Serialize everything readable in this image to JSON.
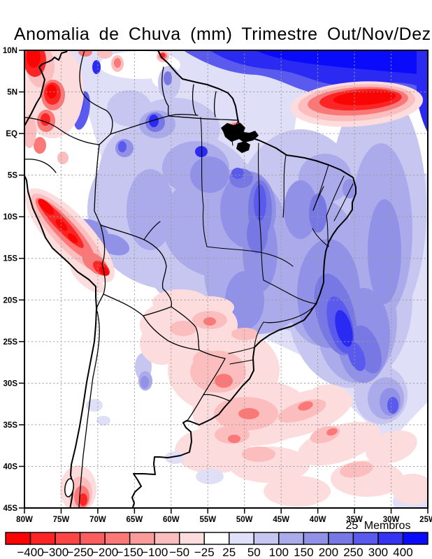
{
  "title": "Anomalia de Chuva (mm) Trimestre Out/Nov/Dez",
  "map": {
    "lat_ticks": [
      "10N",
      "5N",
      "EQ",
      "5S",
      "10S",
      "15S",
      "20S",
      "25S",
      "30S",
      "35S",
      "40S",
      "45S"
    ],
    "lon_ticks": [
      "80W",
      "75W",
      "70W",
      "65W",
      "60W",
      "55W",
      "50W",
      "45W",
      "40W",
      "35W",
      "30W",
      "25W"
    ]
  },
  "colorbar": {
    "annotation": "25 Membros",
    "levels": [
      "-400",
      "-300",
      "-250",
      "-200",
      "-150",
      "-100",
      "-50",
      "-25",
      "25",
      "50",
      "100",
      "150",
      "200",
      "250",
      "300",
      "400"
    ],
    "colors": [
      "#fb0404",
      "#fb2525",
      "#fc4646",
      "#fb5e5e",
      "#fb7878",
      "#fa9b9b",
      "#fbbdbd",
      "#fcdcdc",
      "#ffffff",
      "#e0e0f8",
      "#c6c6f1",
      "#ababeb",
      "#9191e7",
      "#7878e4",
      "#5a5aee",
      "#3434f2",
      "#0b0bfb"
    ]
  },
  "chart_data": {
    "type": "heatmap",
    "title": "Anomalia de Chuva (mm) Trimestre Out/Nov/Dez",
    "units": "mm",
    "ensemble_note": "25 Membros",
    "x_axis": {
      "ticks": [
        "80W",
        "75W",
        "70W",
        "65W",
        "60W",
        "55W",
        "50W",
        "45W",
        "40W",
        "35W",
        "30W",
        "25W"
      ],
      "range": [
        "80W",
        "25W"
      ]
    },
    "y_axis": {
      "ticks": [
        "10N",
        "5N",
        "EQ",
        "5S",
        "10S",
        "15S",
        "20S",
        "25S",
        "30S",
        "35S",
        "40S",
        "45S"
      ],
      "range": [
        "10N",
        "45S"
      ]
    },
    "grid": "dotted, every 5 degrees",
    "legend_position": "bottom horizontal colorbar",
    "colorbar_levels": [
      -400,
      -300,
      -250,
      -200,
      -150,
      -100,
      -50,
      -25,
      25,
      50,
      100,
      150,
      200,
      250,
      300,
      400
    ],
    "colorbar_colors": [
      "#fb0404",
      "#fb2525",
      "#fc4646",
      "#fb5e5e",
      "#fb7878",
      "#fa9b9b",
      "#fbbdbd",
      "#fcdcdc",
      "#ffffff",
      "#e0e0f8",
      "#c6c6f1",
      "#ababeb",
      "#9191e7",
      "#7878e4",
      "#5a5aee",
      "#3434f2",
      "#0b0bfb"
    ],
    "regions": [
      {
        "area": "Amazonia central e leste do Brasil",
        "anomaly_mm": "+25 a +150"
      },
      {
        "area": "Atlantico tropical norte (canto superior direito)",
        "anomaly_mm": "+250 a +400"
      },
      {
        "area": "Atlantico ~5N/35W (oval vermelha)",
        "anomaly_mm": "-250 a -400"
      },
      {
        "area": "Andes do Peru (faixa ao longo da costa oeste)",
        "anomaly_mm": "-150 a -400"
      },
      {
        "area": "Andes da Colombia",
        "anomaly_mm": "nucleos alternados -400 a +400"
      },
      {
        "area": "Sudeste do Brasil e Atlantico adjacente",
        "anomaly_mm": "+150 a +400"
      },
      {
        "area": "Sul do Brasil, Paraguai, Uruguai, NE da Argentina",
        "anomaly_mm": "-25 a -150"
      },
      {
        "area": "Sul do Chile ~43S",
        "anomaly_mm": "-50 a -200"
      },
      {
        "area": "Patagonia e Chile central",
        "anomaly_mm": "proximo de 0 (branco)"
      }
    ]
  }
}
